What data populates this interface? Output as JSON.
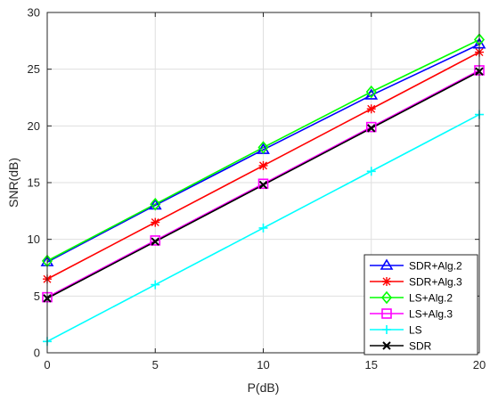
{
  "chart_data": {
    "type": "line",
    "title": "",
    "xlabel": "P(dB)",
    "ylabel": "SNR(dB)",
    "xlim": [
      0,
      20
    ],
    "ylim": [
      0,
      30
    ],
    "xticks": [
      0,
      5,
      10,
      15,
      20
    ],
    "yticks": [
      0,
      5,
      10,
      15,
      20,
      25,
      30
    ],
    "grid": true,
    "legend_position": "bottom-right",
    "x": [
      0,
      5,
      10,
      15,
      20
    ],
    "series": [
      {
        "name": "SDR+Alg.2",
        "values": [
          8.0,
          13.0,
          17.9,
          22.7,
          27.2
        ],
        "color": "#0000ff",
        "marker": "triangle"
      },
      {
        "name": "SDR+Alg.3",
        "values": [
          6.5,
          11.5,
          16.5,
          21.5,
          26.5
        ],
        "color": "#ff0000",
        "marker": "asterisk"
      },
      {
        "name": "LS+Alg.2",
        "values": [
          8.1,
          13.1,
          18.1,
          23.0,
          27.6
        ],
        "color": "#00ff00",
        "marker": "diamond"
      },
      {
        "name": "LS+Alg.3",
        "values": [
          4.9,
          9.9,
          14.9,
          19.9,
          24.9
        ],
        "color": "#ff00ff",
        "marker": "square"
      },
      {
        "name": "LS",
        "values": [
          1.0,
          6.0,
          11.0,
          16.0,
          21.0
        ],
        "color": "#00ffff",
        "marker": "plus"
      },
      {
        "name": "SDR",
        "values": [
          4.8,
          9.8,
          14.8,
          19.8,
          24.8
        ],
        "color": "#000000",
        "marker": "x"
      }
    ]
  }
}
